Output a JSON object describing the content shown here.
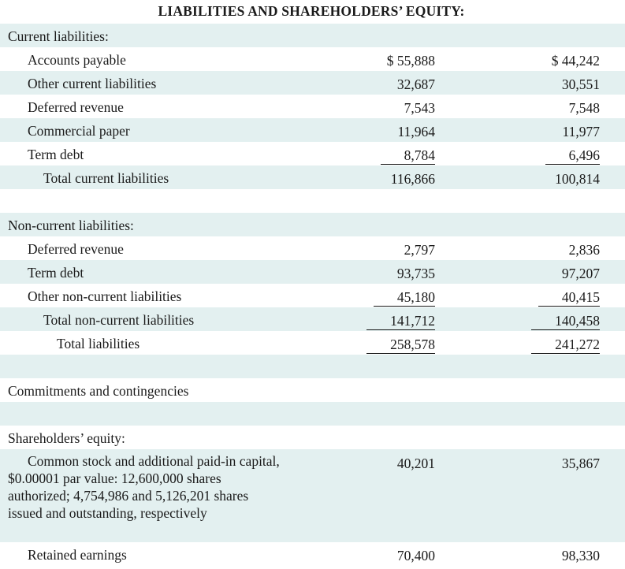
{
  "title": "LIABILITIES AND SHAREHOLDERS’ EQUITY:",
  "sections": {
    "current": {
      "heading": "Current liabilities:",
      "rows": [
        {
          "label": "Accounts payable",
          "y1": "$ 55,888",
          "y2": "$ 44,242"
        },
        {
          "label": "Other current liabilities",
          "y1": "32,687",
          "y2": "30,551"
        },
        {
          "label": "Deferred revenue",
          "y1": "7,543",
          "y2": "7,548"
        },
        {
          "label": "Commercial paper",
          "y1": "11,964",
          "y2": "11,977"
        },
        {
          "label": "Term debt",
          "y1": "8,784",
          "y2": "6,496"
        }
      ],
      "total": {
        "label": "Total current liabilities",
        "y1": "116,866",
        "y2": "100,814"
      }
    },
    "noncurrent": {
      "heading": "Non-current liabilities:",
      "rows": [
        {
          "label": "Deferred revenue",
          "y1": "2,797",
          "y2": "2,836"
        },
        {
          "label": "Term debt",
          "y1": "93,735",
          "y2": "97,207"
        },
        {
          "label": "Other non-current liabilities",
          "y1": "45,180",
          "y2": "40,415"
        }
      ],
      "total": {
        "label": "Total non-current liabilities",
        "y1": "141,712",
        "y2": "140,458"
      },
      "total_liabilities": {
        "label": "Total liabilities",
        "y1": "258,578",
        "y2": "241,272"
      }
    },
    "commitments": {
      "label": "Commitments and contingencies"
    },
    "equity": {
      "heading": "Shareholders’ equity:",
      "common_stock": {
        "label": "Common stock and additional paid-in capital, $0.00001 par value: 12,600,000 shares authorized; 4,754,986 and 5,126,201 shares issued and outstanding, respectively",
        "y1": "40,201",
        "y2": "35,867"
      },
      "retained": {
        "label": "Retained earnings",
        "y1": "70,400",
        "y2": "98,330"
      }
    }
  },
  "colors": {
    "shade": "#e3f0f0",
    "text": "#1a1a1a"
  }
}
